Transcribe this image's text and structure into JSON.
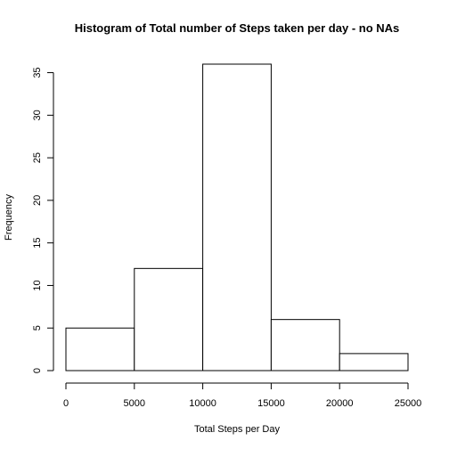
{
  "chart_data": {
    "type": "bar",
    "title": "Histogram of Total number of Steps taken per day - no NAs",
    "xlabel": "Total Steps per Day",
    "ylabel": "Frequency",
    "bins": [
      {
        "start": 0,
        "end": 5000,
        "count": 5
      },
      {
        "start": 5000,
        "end": 10000,
        "count": 12
      },
      {
        "start": 10000,
        "end": 15000,
        "count": 36
      },
      {
        "start": 15000,
        "end": 20000,
        "count": 6
      },
      {
        "start": 20000,
        "end": 25000,
        "count": 2
      }
    ],
    "xlim": [
      0,
      25000
    ],
    "ylim": [
      0,
      36
    ],
    "x_ticks": [
      0,
      5000,
      10000,
      15000,
      20000,
      25000
    ],
    "y_ticks": [
      0,
      5,
      10,
      15,
      20,
      25,
      30,
      35
    ],
    "grid": false,
    "legend": "none",
    "colors": {
      "bar_fill": "#ffffff",
      "bar_stroke": "#000000"
    }
  }
}
